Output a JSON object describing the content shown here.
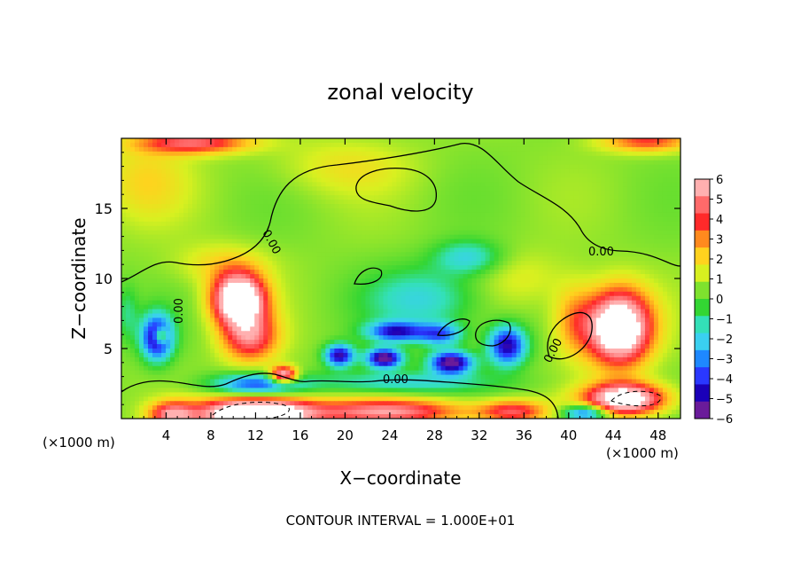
{
  "chart_data": {
    "type": "heatmap",
    "title": "zonal velocity",
    "xlabel": "X−coordinate",
    "ylabel": "Z−coordinate",
    "x_scale_label": "(×1000 m)",
    "x_scale_label_right": "(×1000 m)",
    "footer": "CONTOUR INTERVAL = 1.000E+01",
    "xlim": [
      0,
      50
    ],
    "ylim": [
      0,
      20
    ],
    "x_ticks": [
      4,
      8,
      12,
      16,
      20,
      24,
      28,
      32,
      36,
      40,
      44,
      48
    ],
    "y_ticks": [
      5,
      10,
      15
    ],
    "colorbar": {
      "min": -6,
      "max": 6,
      "ticks": [
        6,
        5,
        4,
        3,
        2,
        1,
        0,
        -1,
        -2,
        -3,
        -4,
        -5,
        -6
      ],
      "colors": [
        "#6a1b9a",
        "#1a00b8",
        "#2a38ff",
        "#1e88ff",
        "#3ad0f0",
        "#33e0b8",
        "#33d633",
        "#7ee22e",
        "#d8f020",
        "#ffd21e",
        "#ff8a1e",
        "#ff2a2a",
        "#ff6a6a",
        "#ffb0b0"
      ]
    },
    "contour_labels": [
      "0.00",
      "0.00",
      "0.00",
      "0.00",
      "0.00"
    ],
    "regions": [
      {
        "x": 12,
        "z": 0.3,
        "value": 10.0,
        "sx": 5.0,
        "sz": 1.2
      },
      {
        "x": 4.5,
        "z": 0.3,
        "value": 4.5,
        "sx": 2.0,
        "sz": 0.9
      },
      {
        "x": 24,
        "z": 0.5,
        "value": 5.0,
        "sx": 7.0,
        "sz": 0.9
      },
      {
        "x": 35,
        "z": 0.5,
        "value": 4.0,
        "sx": 3.0,
        "sz": 0.8
      },
      {
        "x": 45,
        "z": 1.4,
        "value": 8.0,
        "sx": 3.5,
        "sz": 1.1
      },
      {
        "x": 41.5,
        "z": 0.4,
        "value": -5.0,
        "sx": 2.0,
        "sz": 0.6
      },
      {
        "x": 12,
        "z": 2.4,
        "value": -4.5,
        "sx": 4.0,
        "sz": 0.8
      },
      {
        "x": 25,
        "z": 2.6,
        "value": -2.5,
        "sx": 8.0,
        "sz": 0.8
      },
      {
        "x": 10.5,
        "z": 8.5,
        "value": 9.0,
        "sx": 2.3,
        "sz": 1.8
      },
      {
        "x": 11.5,
        "z": 5.8,
        "value": 4.5,
        "sx": 2.5,
        "sz": 1.8
      },
      {
        "x": 14.5,
        "z": 3.1,
        "value": 7.0,
        "sx": 1.2,
        "sz": 0.6
      },
      {
        "x": 3.2,
        "z": 5.8,
        "value": -6.5,
        "sx": 1.4,
        "sz": 1.6
      },
      {
        "x": 3.5,
        "z": 5.9,
        "value": 5.0,
        "sx": 0.6,
        "sz": 0.6
      },
      {
        "x": 19.5,
        "z": 4.5,
        "value": -6.0,
        "sx": 1.3,
        "sz": 0.8
      },
      {
        "x": 23.5,
        "z": 4.3,
        "value": -7.0,
        "sx": 1.6,
        "sz": 0.7
      },
      {
        "x": 24.5,
        "z": 6.2,
        "value": -5.0,
        "sx": 2.5,
        "sz": 0.7
      },
      {
        "x": 29.5,
        "z": 4.0,
        "value": -7.0,
        "sx": 1.9,
        "sz": 0.8
      },
      {
        "x": 34.5,
        "z": 5.2,
        "value": -6.0,
        "sx": 1.7,
        "sz": 1.4
      },
      {
        "x": 28.5,
        "z": 6.0,
        "value": -4.0,
        "sx": 2.0,
        "sz": 0.8
      },
      {
        "x": 27,
        "z": 8.5,
        "value": -2.5,
        "sx": 5.0,
        "sz": 2.2
      },
      {
        "x": 31,
        "z": 11.5,
        "value": -2.5,
        "sx": 3.0,
        "sz": 1.2
      },
      {
        "x": 44.5,
        "z": 6.5,
        "value": 9.0,
        "sx": 2.8,
        "sz": 2.6
      },
      {
        "x": 40.5,
        "z": 7.0,
        "value": 2.5,
        "sx": 2.0,
        "sz": 2.5
      },
      {
        "x": 6.5,
        "z": 19.7,
        "value": 4.5,
        "sx": 5.0,
        "sz": 0.8
      },
      {
        "x": 47,
        "z": 19.8,
        "value": 3.5,
        "sx": 4.0,
        "sz": 0.8
      },
      {
        "x": 2,
        "z": 17,
        "value": 1.5,
        "sx": 4.0,
        "sz": 3.0
      },
      {
        "x": 20,
        "z": 18,
        "value": 1.2,
        "sx": 6.0,
        "sz": 2.0
      },
      {
        "x": 9,
        "z": 11,
        "value": 1.5,
        "sx": 4.0,
        "sz": 1.5
      },
      {
        "x": 36,
        "z": 10,
        "value": 1.0,
        "sx": 4.0,
        "sz": 2.0
      },
      {
        "x": 0.5,
        "z": 7.5,
        "value": -1.5,
        "sx": 1.0,
        "sz": 2.0
      }
    ]
  }
}
